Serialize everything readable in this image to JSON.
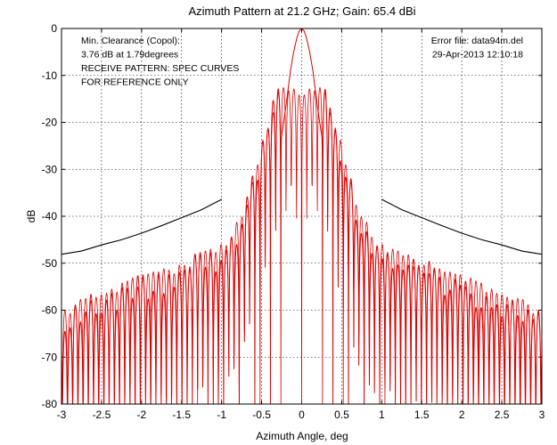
{
  "chart_data": {
    "type": "line",
    "title": "Azimuth Pattern at 21.2 GHz; Gain:  65.4 dBi",
    "xlabel": "Azimuth Angle, deg",
    "ylabel": "dB",
    "xlim": [
      -3,
      3
    ],
    "ylim": [
      -80,
      0
    ],
    "x_ticks": [
      -3,
      -2.5,
      -2,
      -1.5,
      -1,
      -0.5,
      0,
      0.5,
      1,
      1.5,
      2,
      2.5,
      3
    ],
    "x_tick_labels": [
      "-3",
      "-2.5",
      "-2",
      "-1.5",
      "-1",
      "-0.5",
      "0",
      "0.5",
      "1",
      "1.5",
      "2",
      "2.5",
      "3"
    ],
    "y_ticks": [
      0,
      -10,
      -20,
      -30,
      -40,
      -50,
      -60,
      -70,
      -80
    ],
    "y_tick_labels": [
      "0",
      "-10",
      "-20",
      "-30",
      "-40",
      "-50",
      "-60",
      "-70",
      "-80"
    ],
    "grid": true,
    "annotations_left": [
      "Min. Clearance (Copol):",
      "3.76 dB at 1.79degrees",
      "RECEIVE PATTERN: SPEC CURVES",
      "FOR REFERENCE ONLY"
    ],
    "annotations_right": [
      "Error file: data94m.del",
      "29-Apr-2013 12:10:18"
    ],
    "series": [
      {
        "role": "spec-curve",
        "color": "#000000",
        "segments": [
          {
            "x": [
              -3.0,
              -2.75,
              -2.5,
              -2.25,
              -2.0,
              -1.75,
              -1.5,
              -1.25,
              -1.0
            ],
            "y": [
              -48.1,
              -47.4,
              -46.1,
              -45.0,
              -43.6,
              -42.0,
              -40.3,
              -38.6,
              -36.4
            ]
          },
          {
            "x": [
              1.0,
              1.25,
              1.5,
              1.75,
              2.0,
              2.25,
              2.5,
              2.75,
              3.0
            ],
            "y": [
              -36.4,
              -38.6,
              -40.3,
              -42.0,
              -43.6,
              -45.0,
              -46.1,
              -47.4,
              -48.1
            ]
          }
        ]
      },
      {
        "role": "copol-pattern",
        "color": "#dd0000",
        "main_lobe": {
          "x": [
            -0.26,
            -0.2,
            -0.14,
            -0.1,
            -0.06,
            -0.03,
            0,
            0.03,
            0.06,
            0.1,
            0.14,
            0.2,
            0.26
          ],
          "y": [
            -24,
            -17,
            -9,
            -5,
            -2,
            -0.5,
            0,
            -0.5,
            -2,
            -5,
            -9,
            -17,
            -24
          ]
        },
        "lobe_peaks": {
          "x": [
            0.3,
            0.45,
            0.6,
            0.75,
            0.9,
            1.05,
            1.2,
            1.5,
            1.8,
            2.1,
            2.4,
            2.7,
            3.0
          ],
          "y": [
            -12,
            -20,
            -30,
            -39,
            -43,
            -46,
            -47,
            -49,
            -51,
            -53,
            -55,
            -57,
            -60
          ]
        },
        "lobe_spacing": 0.065,
        "null_depth": -80
      },
      {
        "role": "secondary-pattern",
        "color": "#f07070",
        "lobe_peaks": {
          "x": [
            0.25,
            0.4,
            0.55,
            0.7,
            0.85,
            1.0,
            1.2,
            1.5,
            1.8,
            2.1,
            2.4,
            2.7,
            3.0
          ],
          "y": [
            -28,
            -32,
            -38,
            -45,
            -52,
            -57,
            -61,
            -67,
            -71,
            -73,
            -75,
            -76,
            -77
          ]
        },
        "lobe_spacing": 0.045,
        "null_depth": -80
      }
    ]
  }
}
